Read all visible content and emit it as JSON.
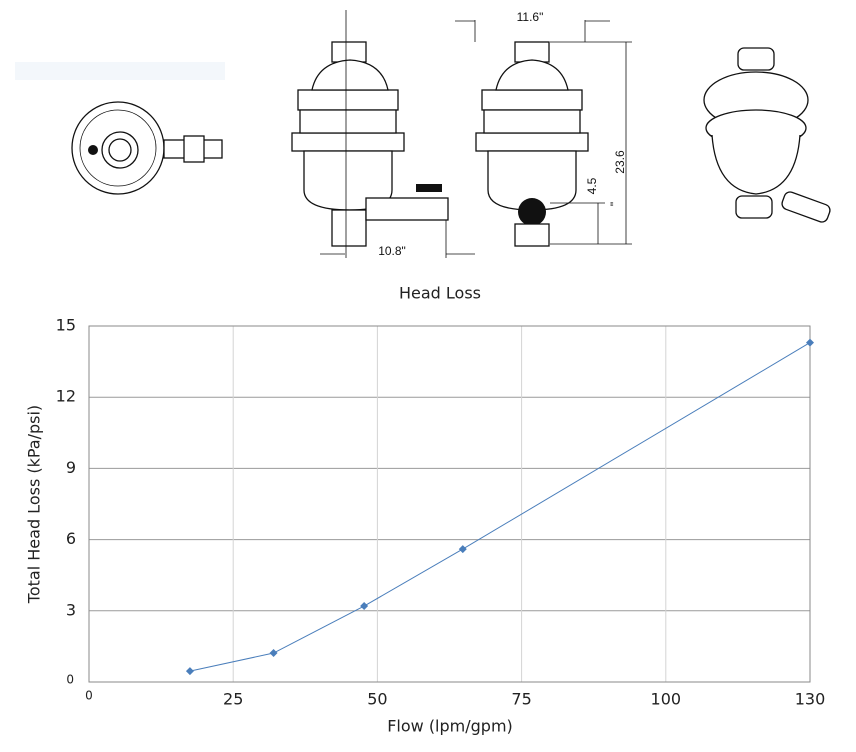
{
  "drawing": {
    "labels": [
      "11.6\"",
      "10.8\"",
      "4.5",
      "23.6",
      "\""
    ]
  },
  "chart_data": {
    "type": "line",
    "title": "Head Loss",
    "x_label": "Flow (lpm/gpm)",
    "y_label": "Total Head Loss (kPa/psi)",
    "x": [
      17.5,
      32,
      47.7,
      64.8,
      130
    ],
    "series": [
      {
        "name": "Head Loss",
        "color": "#4a7ebb",
        "values": [
          0.46,
          1.22,
          3.2,
          5.6,
          14.3
        ]
      }
    ],
    "xlim": [
      0,
      130
    ],
    "xticks": [
      0,
      25,
      50,
      75,
      100,
      130
    ],
    "ylim": [
      0,
      15
    ],
    "yticks": [
      0,
      3,
      6,
      9,
      12,
      15
    ],
    "grid": true
  }
}
